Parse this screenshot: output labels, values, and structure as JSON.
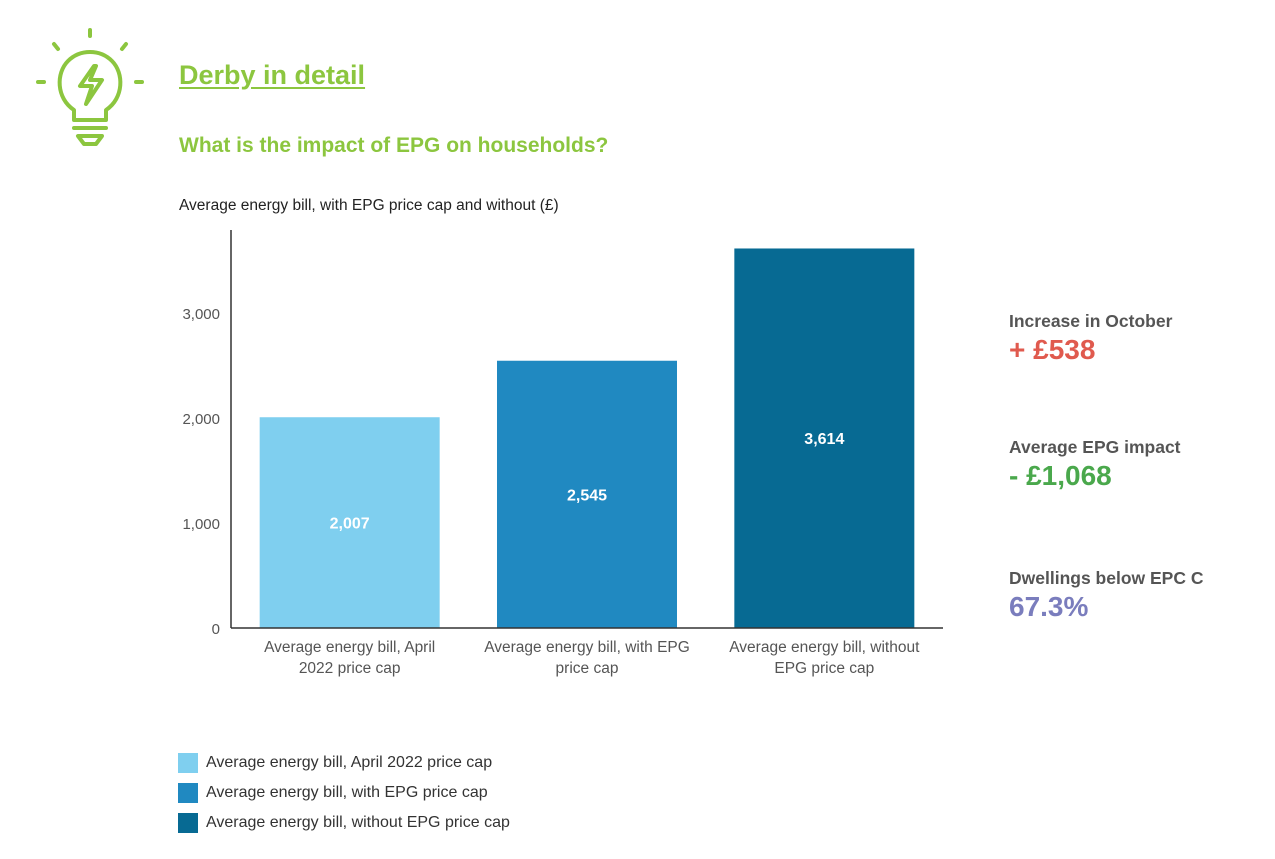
{
  "header": {
    "title": "Derby in detail",
    "subtitle": "What is the impact of EPG on households?",
    "logo_icon": "lightbulb-bolt-icon"
  },
  "colors": {
    "accent": "#8cc63f",
    "increase": "#e05a4e",
    "impact": "#4aa84c",
    "dwellings": "#7a7dbd",
    "axis": "#333333",
    "tick_label": "#555555"
  },
  "stats": [
    {
      "label": "Increase in October",
      "value": "+ £538",
      "color": "#e05a4e"
    },
    {
      "label": "Average EPG impact",
      "value": "- £1,068",
      "color": "#4aa84c"
    },
    {
      "label": "Dwellings below EPC C",
      "value": "67.3%",
      "color": "#7a7dbd"
    }
  ],
  "chart_data": {
    "type": "bar",
    "title": "Average energy bill, with EPG price cap and without (£)",
    "categories": [
      [
        "Average energy bill, April",
        "2022 price cap"
      ],
      [
        "Average energy bill, with EPG",
        "price cap"
      ],
      [
        "Average energy bill, without",
        "EPG price cap"
      ]
    ],
    "values": [
      2007,
      2545,
      3614
    ],
    "value_labels": [
      "2,007",
      "2,545",
      "3,614"
    ],
    "colors": [
      "#7fcfef",
      "#2089c1",
      "#076a93"
    ],
    "yticks": [
      0,
      1000,
      2000,
      3000
    ],
    "ytick_labels": [
      "0",
      "1,000",
      "2,000",
      "3,000"
    ],
    "ylim": [
      0,
      3790
    ],
    "grid": false,
    "legend": {
      "placement": "bottom-left",
      "entries": [
        "Average energy bill, April 2022 price cap",
        "Average energy bill, with EPG price cap",
        "Average energy bill, without EPG price cap"
      ]
    }
  }
}
